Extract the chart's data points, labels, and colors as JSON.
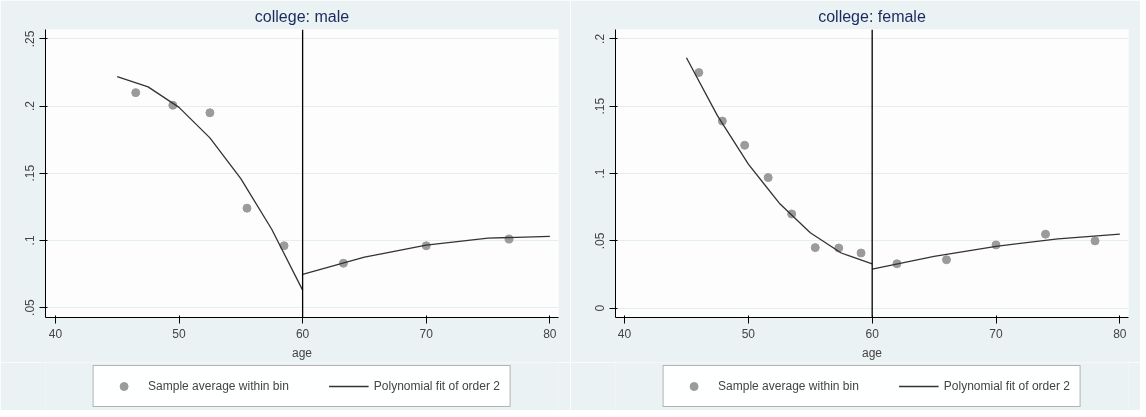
{
  "chart_data": [
    {
      "type": "scatter",
      "title": "college: male",
      "xlabel": "age",
      "xlim": [
        39.2,
        80.7
      ],
      "xticks": [
        40,
        50,
        60,
        70,
        80
      ],
      "ylim": [
        0.0426,
        0.257
      ],
      "yticks": [
        {
          "value": 0.05,
          "label": ".05"
        },
        {
          "value": 0.1,
          "label": ".1"
        },
        {
          "value": 0.15,
          "label": ".15"
        },
        {
          "value": 0.2,
          "label": ".2"
        },
        {
          "value": 0.25,
          "label": ".25"
        }
      ],
      "grid": "y",
      "legend": "bottom",
      "ref_lines": [
        {
          "axis": "x",
          "value": 60,
          "color": "#000000"
        }
      ],
      "series": [
        {
          "name": "Sample average within bin",
          "type": "scatter",
          "marker": "circle",
          "color": "#9b9b9b",
          "x": [
            46.5,
            49.5,
            52.5,
            55.5,
            58.5,
            63.3,
            70,
            76.7
          ],
          "values": [
            0.21,
            0.2006,
            0.195,
            0.124,
            0.096,
            0.083,
            0.096,
            0.101
          ]
        },
        {
          "name": "Polynomial fit of order 2",
          "type": "line",
          "color": "#333333",
          "x": [
            45,
            47.5,
            50,
            52.5,
            55,
            57.5,
            60
          ],
          "values": [
            0.222,
            0.2143,
            0.199,
            0.1763,
            0.146,
            0.1083,
            0.063
          ]
        },
        {
          "type": "line",
          "color": "#333333",
          "x": [
            60,
            65,
            70,
            75,
            80
          ],
          "values": [
            0.0747,
            0.0875,
            0.0965,
            0.1017,
            0.103
          ]
        }
      ]
    },
    {
      "type": "scatter",
      "title": "college: female",
      "xlabel": "age",
      "xlim": [
        39.27,
        80.7
      ],
      "xticks": [
        40,
        50,
        60,
        70,
        80
      ],
      "ylim": [
        -0.0069,
        0.207
      ],
      "yticks": [
        0,
        {
          "value": 0.05,
          "label": ".05"
        },
        {
          "value": 0.1,
          "label": ".1"
        },
        {
          "value": 0.15,
          "label": ".15"
        },
        {
          "value": 0.2,
          "label": ".2"
        }
      ],
      "grid": "y",
      "legend": "bottom",
      "ref_lines": [
        {
          "axis": "x",
          "value": 60,
          "color": "#000000"
        }
      ],
      "series": [
        {
          "name": "Sample average within bin",
          "type": "scatter",
          "marker": "circle",
          "color": "#9b9b9b",
          "x": [
            46,
            47.9,
            49.7,
            51.6,
            53.5,
            55.4,
            57.3,
            59.1,
            62,
            66,
            70,
            74,
            78
          ],
          "values": [
            0.175,
            0.139,
            0.121,
            0.097,
            0.07,
            0.045,
            0.0447,
            0.041,
            0.033,
            0.036,
            0.047,
            0.055,
            0.05
          ]
        },
        {
          "name": "Polynomial fit of order 2",
          "type": "line",
          "color": "#333333",
          "x": [
            45,
            47.5,
            50,
            52.5,
            55,
            57.5,
            60
          ],
          "values": [
            0.186,
            0.143,
            0.107,
            0.078,
            0.056,
            0.041,
            0.033
          ]
        },
        {
          "type": "line",
          "color": "#333333",
          "x": [
            60,
            65,
            70,
            75,
            80
          ],
          "values": [
            0.029,
            0.0385,
            0.046,
            0.0515,
            0.055
          ]
        }
      ]
    }
  ]
}
